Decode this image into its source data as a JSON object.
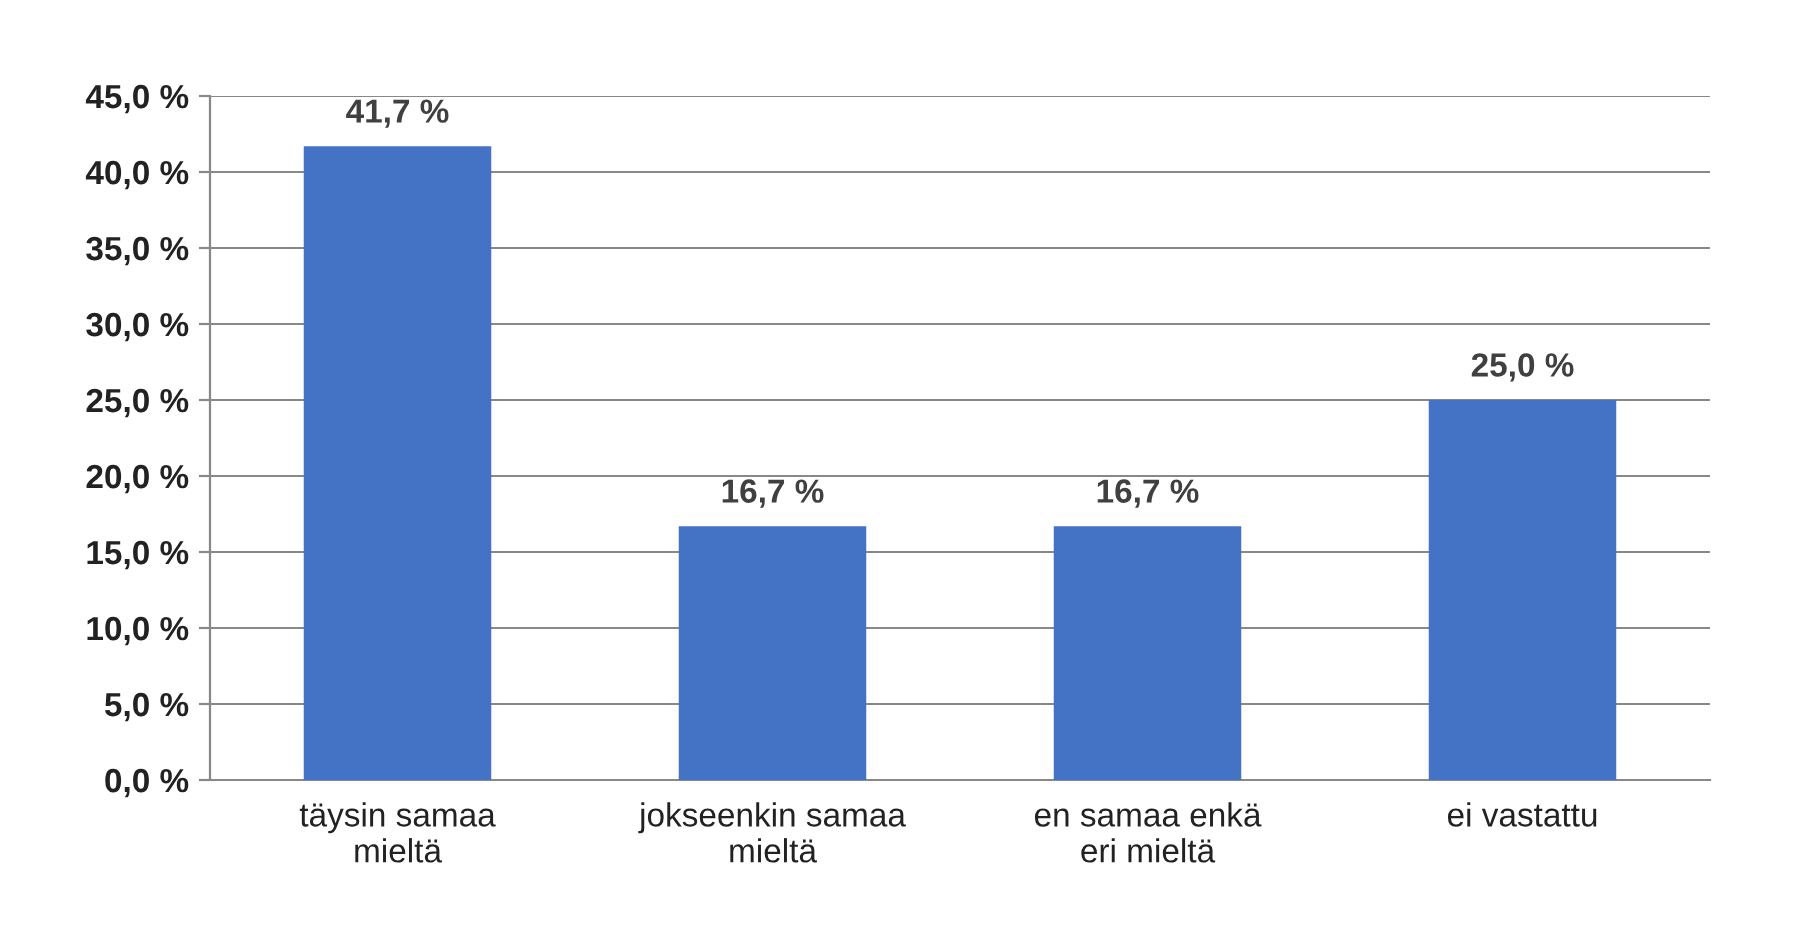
{
  "chart_data": {
    "type": "bar",
    "categories": [
      "täysin samaa\nmieltä",
      "jokseenkin samaa\nmieltä",
      "en samaa enkä\neri mieltä",
      "ei vastattu"
    ],
    "values": [
      41.7,
      16.7,
      16.7,
      25.0
    ],
    "color": "#4472c4",
    "value_labels": [
      "41,7 %",
      "16,7 %",
      "16,7 %",
      "25,0 %"
    ],
    "ylim": [
      0,
      45
    ],
    "yticks": [
      {
        "value": 0,
        "label": "0,0 %"
      },
      {
        "value": 5,
        "label": "5,0 %"
      },
      {
        "value": 10,
        "label": "10,0 %"
      },
      {
        "value": 15,
        "label": "15,0 %"
      },
      {
        "value": 20,
        "label": "20,0 %"
      },
      {
        "value": 25,
        "label": "25,0 %"
      },
      {
        "value": 30,
        "label": "30,0 %"
      },
      {
        "value": 35,
        "label": "35,0 %"
      },
      {
        "value": 40,
        "label": "40,0 %"
      },
      {
        "value": 45,
        "label": "45,0 %"
      }
    ],
    "grid": "y"
  }
}
